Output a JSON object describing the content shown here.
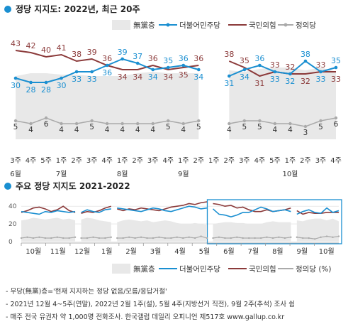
{
  "colors": {
    "blue": "#1a8fd1",
    "red": "#8b3a3a",
    "gray": "#aaaaaa",
    "area": "#e8e8e8",
    "accent": "#1a8fd1"
  },
  "legend": {
    "undecided": "無黨층",
    "democratic": "더불어민주당",
    "ppp": "국민의힘",
    "justice": "정의당",
    "justice_pct": "정의당 (%)"
  },
  "notes": [
    "- 무당(無黨)층='현재 지지하는 정당 없음/모름/응답거절'",
    "- 2021년 12월 4~5주(연말), 2022년 2월 1주(설), 5월 4주(지방선거 직전), 9월 2주(추석) 조사 쉼",
    "- 매주 전국 유권자 약 1,000명 전화조사. 한국갤럽 데일리 오피니언 제517호 www.gallup.co.kr"
  ],
  "chart_data": [
    {
      "type": "line",
      "title": "정당 지지도: 2022년, 최근 20주",
      "x": [
        "3주",
        "4주",
        "5주",
        "1주",
        "2주",
        "3주",
        "4주",
        "1주",
        "2주",
        "3주",
        "4주",
        "1주",
        "2주",
        "1주",
        "2주",
        "3주",
        "4주",
        "5주",
        "1주",
        "2주",
        "3주",
        "4주"
      ],
      "month_labels": [
        {
          "label": "6월",
          "at": 0
        },
        {
          "label": "7월",
          "at": 3
        },
        {
          "label": "8월",
          "at": 7
        },
        {
          "label": "9월",
          "at": 11
        },
        {
          "label": "10월",
          "at": 18
        }
      ],
      "gap_after_index": 10,
      "series": [
        {
          "name": "더불어민주당",
          "color": "#1a8fd1",
          "values": [
            30,
            28,
            28,
            30,
            33,
            33,
            36,
            39,
            37,
            34,
            35,
            36,
            34,
            null,
            31,
            34,
            36,
            33,
            32,
            38,
            33,
            35
          ]
        },
        {
          "name": "국민의힘",
          "color": "#8b3a3a",
          "values": [
            43,
            42,
            40,
            41,
            38,
            39,
            36,
            34,
            34,
            36,
            34,
            35,
            36,
            null,
            38,
            35,
            31,
            33,
            32,
            32,
            33,
            33
          ]
        },
        {
          "name": "정의당",
          "color": "#aaaaaa",
          "values": [
            5,
            4,
            6,
            4,
            4,
            5,
            4,
            4,
            4,
            4,
            5,
            4,
            5,
            null,
            4,
            5,
            5,
            4,
            4,
            3,
            5,
            6
          ]
        },
        {
          "name": "無黨층",
          "color": "#e8e8e8",
          "values": [
            20,
            22,
            22,
            21,
            21,
            20,
            20,
            20,
            22,
            23,
            22,
            22,
            22,
            null,
            24,
            23,
            25,
            26,
            26,
            24,
            26,
            23
          ]
        }
      ],
      "ylim": [
        0,
        50
      ]
    },
    {
      "type": "line",
      "title": "주요 정당 지지도 2021-2022",
      "yticks": [
        0,
        20,
        40
      ],
      "ylim": [
        0,
        45
      ],
      "month_labels": [
        "10월",
        "11월",
        "12월",
        "1월",
        "2월",
        "3월",
        "4월",
        "5월",
        "6월",
        "7월",
        "8월",
        "9월",
        "10월"
      ],
      "highlight": "최근 20주",
      "series": [
        {
          "name": "더불어민주당",
          "color": "#1a8fd1",
          "values": [
            34,
            33,
            32,
            31,
            34,
            33,
            35,
            34,
            33,
            34,
            33,
            36,
            34,
            33,
            36,
            37,
            38,
            37,
            36,
            35,
            34,
            36,
            38,
            37,
            35,
            34,
            36,
            38,
            40,
            39,
            37,
            38,
            37,
            31,
            30,
            28,
            30,
            33,
            33,
            36,
            39,
            37,
            34,
            35,
            36,
            34,
            31,
            34,
            36,
            33,
            32,
            38,
            33,
            35
          ]
        },
        {
          "name": "국민의힘",
          "color": "#8b3a3a",
          "values": [
            33,
            35,
            38,
            39,
            37,
            34,
            36,
            40,
            35,
            33,
            32,
            34,
            33,
            35,
            38,
            40,
            37,
            35,
            37,
            36,
            38,
            37,
            36,
            35,
            37,
            39,
            40,
            41,
            43,
            42,
            44,
            45,
            43,
            42,
            40,
            41,
            38,
            39,
            36,
            34,
            34,
            36,
            34,
            35,
            36,
            38,
            35,
            31,
            33,
            32,
            32,
            33,
            33,
            33
          ]
        },
        {
          "name": "정의당",
          "color": "#aaaaaa",
          "values": [
            4,
            5,
            4,
            5,
            4,
            4,
            5,
            4,
            4,
            5,
            4,
            4,
            5,
            4,
            4,
            5,
            4,
            4,
            5,
            4,
            5,
            4,
            4,
            5,
            4,
            4,
            5,
            4,
            5,
            4,
            6,
            4,
            4,
            5,
            4,
            4,
            5,
            4,
            4,
            4,
            4,
            5,
            4,
            5,
            4,
            5,
            5,
            4,
            4,
            3,
            5,
            6,
            5,
            6
          ]
        },
        {
          "name": "無黨층",
          "color": "#e8e8e8",
          "values": [
            24,
            25,
            27,
            26,
            25,
            26,
            27,
            25,
            26,
            24,
            25,
            27,
            26,
            24,
            23,
            22,
            22,
            24,
            25,
            24,
            23,
            24,
            22,
            23,
            24,
            23,
            21,
            20,
            20,
            21,
            20,
            19,
            20,
            21,
            22,
            22,
            21,
            21,
            20,
            20,
            20,
            22,
            23,
            22,
            22,
            22,
            24,
            23,
            25,
            26,
            26,
            24,
            26,
            23
          ]
        }
      ],
      "gaps_after_index": [
        9,
        15,
        31,
        45
      ]
    }
  ]
}
